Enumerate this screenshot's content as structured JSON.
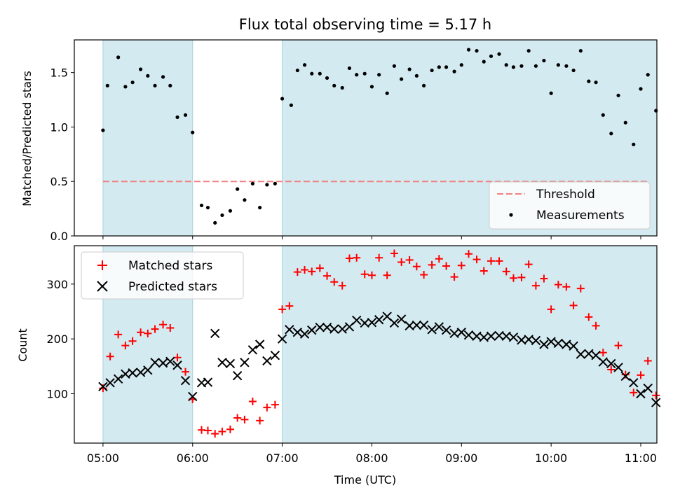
{
  "chart_data": [
    {
      "type": "scatter",
      "title": "Flux total observing time = 5.17 h",
      "xlabel": "",
      "ylabel": "Matched/Predicted stars",
      "xlim": [
        -0.32,
        6.18
      ],
      "ylim": [
        0,
        1.8
      ],
      "yticks": [
        0.0,
        0.5,
        1.0,
        1.5
      ],
      "grid": false,
      "legend_position": "lower-right",
      "shaded_intervals": [
        [
          0.0,
          1.0
        ],
        [
          2.0,
          6.18
        ]
      ],
      "shade_color": "#d4eaf1",
      "threshold": {
        "name": "Threshold",
        "value": 0.5,
        "color": "#f08080"
      },
      "series": [
        {
          "name": "Measurements",
          "color": "#000000",
          "marker": "dot",
          "x": [
            0.0,
            0.05,
            0.17,
            0.25,
            0.33,
            0.42,
            0.5,
            0.58,
            0.67,
            0.75,
            0.83,
            0.92,
            1.0,
            1.1,
            1.17,
            1.25,
            1.33,
            1.42,
            1.5,
            1.58,
            1.67,
            1.75,
            1.83,
            1.92,
            2.0,
            2.1,
            2.17,
            2.25,
            2.33,
            2.42,
            2.5,
            2.58,
            2.67,
            2.75,
            2.83,
            2.92,
            3.0,
            3.08,
            3.17,
            3.25,
            3.33,
            3.42,
            3.5,
            3.58,
            3.67,
            3.75,
            3.83,
            3.92,
            4.0,
            4.08,
            4.17,
            4.25,
            4.33,
            4.42,
            4.5,
            4.58,
            4.67,
            4.75,
            4.83,
            4.92,
            5.0,
            5.08,
            5.17,
            5.25,
            5.33,
            5.42,
            5.5,
            5.58,
            5.67,
            5.75,
            5.83,
            5.92,
            6.0,
            6.08,
            6.17
          ],
          "y": [
            0.97,
            1.38,
            1.64,
            1.37,
            1.41,
            1.53,
            1.47,
            1.38,
            1.46,
            1.38,
            1.09,
            1.11,
            0.95,
            0.28,
            0.26,
            0.12,
            0.19,
            0.23,
            0.43,
            0.33,
            0.48,
            0.26,
            0.47,
            0.48,
            1.26,
            1.2,
            1.52,
            1.57,
            1.49,
            1.49,
            1.45,
            1.38,
            1.36,
            1.54,
            1.48,
            1.49,
            1.37,
            1.48,
            1.31,
            1.56,
            1.44,
            1.53,
            1.47,
            1.38,
            1.52,
            1.55,
            1.55,
            1.51,
            1.57,
            1.71,
            1.7,
            1.6,
            1.65,
            1.67,
            1.57,
            1.55,
            1.56,
            1.7,
            1.56,
            1.61,
            1.31,
            1.57,
            1.56,
            1.52,
            1.7,
            1.42,
            1.41,
            1.11,
            0.94,
            1.29,
            1.04,
            0.84,
            1.35,
            1.48,
            1.15
          ]
        }
      ]
    },
    {
      "type": "scatter",
      "title": "",
      "xlabel": "Time (UTC)",
      "ylabel": "Count",
      "xlim": [
        -0.32,
        6.18
      ],
      "ylim": [
        10,
        370
      ],
      "yticks": [
        100,
        200,
        300
      ],
      "xticks": [
        0,
        1,
        2,
        3,
        4,
        5,
        6
      ],
      "xtick_labels": [
        "05:00",
        "06:00",
        "07:00",
        "08:00",
        "09:00",
        "10:00",
        "11:00"
      ],
      "grid": false,
      "legend_position": "upper-left",
      "shaded_intervals": [
        [
          0.0,
          1.0
        ],
        [
          2.0,
          6.18
        ]
      ],
      "shade_color": "#d4eaf1",
      "series": [
        {
          "name": "Matched stars",
          "color": "#ff0000",
          "marker": "plus",
          "x": [
            0.0,
            0.08,
            0.17,
            0.25,
            0.33,
            0.42,
            0.5,
            0.58,
            0.67,
            0.75,
            0.83,
            0.92,
            1.0,
            1.1,
            1.17,
            1.25,
            1.33,
            1.42,
            1.5,
            1.58,
            1.67,
            1.75,
            1.83,
            1.92,
            2.0,
            2.08,
            2.17,
            2.25,
            2.33,
            2.42,
            2.5,
            2.58,
            2.67,
            2.75,
            2.83,
            2.92,
            3.0,
            3.08,
            3.17,
            3.25,
            3.33,
            3.42,
            3.5,
            3.58,
            3.67,
            3.75,
            3.83,
            3.92,
            4.0,
            4.08,
            4.17,
            4.25,
            4.33,
            4.42,
            4.5,
            4.58,
            4.67,
            4.75,
            4.83,
            4.92,
            5.0,
            5.08,
            5.17,
            5.25,
            5.33,
            5.42,
            5.5,
            5.58,
            5.67,
            5.75,
            5.83,
            5.92,
            6.0,
            6.08,
            6.17
          ],
          "y": [
            110,
            168,
            208,
            188,
            196,
            212,
            210,
            218,
            226,
            220,
            166,
            140,
            90,
            34,
            33,
            27,
            31,
            35,
            56,
            53,
            86,
            51,
            75,
            80,
            254,
            260,
            322,
            326,
            323,
            329,
            315,
            304,
            297,
            347,
            348,
            318,
            316,
            348,
            316,
            356,
            340,
            344,
            332,
            317,
            335,
            346,
            333,
            313,
            334,
            355,
            345,
            324,
            342,
            342,
            323,
            311,
            312,
            336,
            297,
            310,
            254,
            299,
            295,
            261,
            292,
            240,
            224,
            175,
            144,
            188,
            135,
            102,
            134,
            160,
            97
          ]
        },
        {
          "name": "Predicted stars",
          "color": "#000000",
          "marker": "x",
          "x": [
            0.0,
            0.08,
            0.17,
            0.25,
            0.33,
            0.42,
            0.5,
            0.58,
            0.67,
            0.75,
            0.83,
            0.92,
            1.0,
            1.1,
            1.17,
            1.25,
            1.33,
            1.42,
            1.5,
            1.58,
            1.67,
            1.75,
            1.83,
            1.92,
            2.0,
            2.08,
            2.17,
            2.25,
            2.33,
            2.42,
            2.5,
            2.58,
            2.67,
            2.75,
            2.83,
            2.92,
            3.0,
            3.08,
            3.17,
            3.25,
            3.33,
            3.42,
            3.5,
            3.58,
            3.67,
            3.75,
            3.83,
            3.92,
            4.0,
            4.08,
            4.17,
            4.25,
            4.33,
            4.42,
            4.5,
            4.58,
            4.67,
            4.75,
            4.83,
            4.92,
            5.0,
            5.08,
            5.17,
            5.25,
            5.33,
            5.42,
            5.5,
            5.58,
            5.67,
            5.75,
            5.83,
            5.92,
            6.0,
            6.08,
            6.17
          ],
          "y": [
            113,
            120,
            127,
            136,
            138,
            139,
            143,
            157,
            156,
            159,
            152,
            124,
            95,
            120,
            121,
            210,
            157,
            155,
            133,
            157,
            180,
            190,
            160,
            170,
            200,
            217,
            212,
            209,
            216,
            221,
            221,
            218,
            218,
            222,
            234,
            229,
            230,
            235,
            241,
            229,
            236,
            224,
            225,
            225,
            217,
            222,
            216,
            210,
            212,
            207,
            205,
            203,
            205,
            206,
            205,
            203,
            198,
            199,
            197,
            190,
            195,
            192,
            190,
            187,
            172,
            173,
            170,
            158,
            155,
            148,
            132,
            120,
            100,
            110,
            84
          ]
        }
      ]
    }
  ]
}
